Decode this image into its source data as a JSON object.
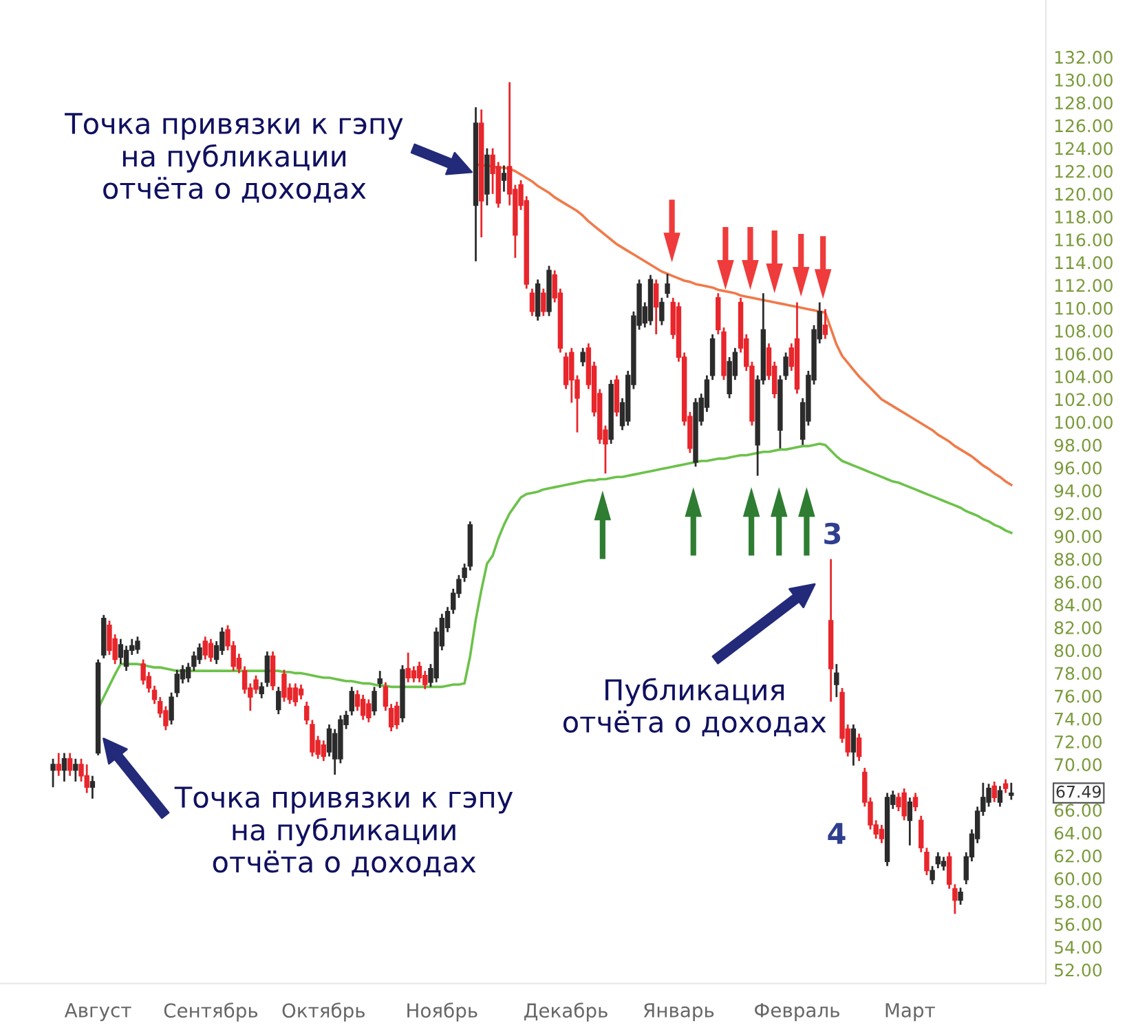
{
  "chart_data": {
    "type": "candlestick",
    "categories": [
      null,
      null,
      null,
      null,
      null,
      null,
      null,
      null,
      "Август",
      null,
      null,
      null,
      null,
      null,
      null,
      null,
      null,
      null,
      null,
      null,
      null,
      null,
      null,
      null,
      null,
      null,
      null,
      null,
      "Сентябрь",
      null,
      null,
      null,
      null,
      null,
      null,
      null,
      null,
      null,
      null,
      null,
      null,
      null,
      null,
      null,
      null,
      null,
      null,
      null,
      "Октябрь",
      null,
      null,
      null,
      null,
      null,
      null,
      null,
      null,
      null,
      null,
      null,
      null,
      null,
      null,
      null,
      null,
      null,
      null,
      null,
      null,
      "Ноябрь",
      null,
      null,
      null,
      null,
      null,
      null,
      null,
      null,
      null,
      null,
      null,
      null,
      null,
      null,
      null,
      null,
      null,
      null,
      null,
      null,
      null,
      "Декабрь",
      null,
      null,
      null,
      null,
      null,
      null,
      null,
      null,
      null,
      null,
      null,
      null,
      null,
      null,
      null,
      null,
      null,
      null,
      null,
      "Январь",
      null,
      null,
      null,
      null,
      null,
      null,
      null,
      null,
      null,
      null,
      null,
      null,
      null,
      null,
      null,
      null,
      null,
      null,
      null,
      null,
      "Февраль",
      null,
      null,
      null,
      null,
      null,
      null,
      null,
      null,
      null,
      null,
      null,
      null,
      null,
      null,
      null,
      null,
      null,
      null,
      null,
      "Март",
      null,
      null,
      null,
      null,
      null,
      null,
      null,
      null,
      null,
      null,
      null,
      null,
      null,
      null,
      null,
      null,
      null,
      null
    ],
    "ohlc": [
      [
        69.5,
        70.5,
        68,
        70
      ],
      [
        70,
        71,
        69,
        69.5
      ],
      [
        69.5,
        71,
        68.5,
        70.5
      ],
      [
        70.5,
        71,
        69,
        69.5
      ],
      [
        69.5,
        70.5,
        68.5,
        70
      ],
      [
        70,
        70.5,
        68.5,
        69
      ],
      [
        69,
        70,
        67.5,
        68
      ],
      [
        68,
        69,
        67,
        68.5
      ],
      [
        71,
        79.2,
        70.8,
        78.9
      ],
      [
        79.6,
        83.1,
        79.3,
        82.8
      ],
      [
        82.2,
        82.6,
        79.6,
        80
      ],
      [
        81,
        81.4,
        78.8,
        79.2
      ],
      [
        79.4,
        81,
        78.8,
        80.5
      ],
      [
        78.6,
        80.4,
        78.2,
        80
      ],
      [
        80,
        81,
        79.6,
        80.4
      ],
      [
        80.1,
        81.2,
        79.7,
        80.8
      ],
      [
        78.8,
        79.2,
        77,
        77.4
      ],
      [
        77.7,
        78.1,
        76.3,
        76.7
      ],
      [
        76.5,
        76.9,
        75.3,
        75.7
      ],
      [
        75.5,
        75.9,
        74.1,
        74.5
      ],
      [
        74.7,
        75.1,
        73,
        73.4
      ],
      [
        73.9,
        76.3,
        73.5,
        75.9
      ],
      [
        76.3,
        78.3,
        75.9,
        77.9
      ],
      [
        77.5,
        78.7,
        77.1,
        78.3
      ],
      [
        77.6,
        78.9,
        77.2,
        78.5
      ],
      [
        78.6,
        79.9,
        78.2,
        79.5
      ],
      [
        79.2,
        80.6,
        78.8,
        80.2
      ],
      [
        80.8,
        81.2,
        79.2,
        79.6
      ],
      [
        80.6,
        81,
        79,
        79.4
      ],
      [
        79.2,
        80.8,
        78.8,
        80.4
      ],
      [
        80,
        82,
        79.6,
        81.6
      ],
      [
        81.8,
        82.2,
        80,
        80.4
      ],
      [
        80.4,
        80.8,
        78.2,
        78.6
      ],
      [
        79.3,
        79.7,
        78,
        78.4
      ],
      [
        78.2,
        78.6,
        76.2,
        76.6
      ],
      [
        76.7,
        77.1,
        74.7,
        75.9
      ],
      [
        77.4,
        77.8,
        76.2,
        76.6
      ],
      [
        76.2,
        77.2,
        75.8,
        76.8
      ],
      [
        77.2,
        79.9,
        76.8,
        79.5
      ],
      [
        79.5,
        79.9,
        76.5,
        76.9
      ],
      [
        74.8,
        76.8,
        74.4,
        76.4
      ],
      [
        77.9,
        78.3,
        75.5,
        75.9
      ],
      [
        76.7,
        77.1,
        75.3,
        75.7
      ],
      [
        76.7,
        77.1,
        75.1,
        75.5
      ],
      [
        76.6,
        77,
        75.7,
        76.1
      ],
      [
        75.1,
        75.5,
        73.5,
        73.9
      ],
      [
        73.5,
        73.9,
        70.7,
        71.1
      ],
      [
        72.1,
        72.5,
        70.5,
        70.9
      ],
      [
        71.7,
        72.1,
        70.3,
        70.7
      ],
      [
        71.1,
        73.5,
        70.7,
        73.1
      ],
      [
        70.5,
        73.1,
        69.1,
        72.7
      ],
      [
        70.5,
        74.3,
        70.1,
        73.9
      ],
      [
        73.5,
        74.7,
        73.1,
        74.3
      ],
      [
        74.7,
        76.8,
        74.3,
        76.4
      ],
      [
        76.1,
        76.5,
        74.7,
        75.1
      ],
      [
        75.7,
        76.1,
        73.9,
        74.3
      ],
      [
        75.3,
        75.7,
        73.7,
        74.1
      ],
      [
        74.7,
        76.8,
        74.3,
        76.4
      ],
      [
        77.1,
        78.2,
        76.7,
        77.5
      ],
      [
        76.8,
        77.2,
        74.7,
        75.1
      ],
      [
        74.9,
        75.3,
        72.9,
        73.3
      ],
      [
        75.1,
        75.5,
        73.1,
        73.5
      ],
      [
        74.1,
        78.7,
        73.7,
        78.3
      ],
      [
        78.4,
        79.8,
        77.2,
        77.6
      ],
      [
        78.2,
        78.6,
        77.2,
        77.6
      ],
      [
        78.6,
        79,
        77.2,
        77.6
      ],
      [
        77.8,
        78.2,
        76.6,
        77
      ],
      [
        77.2,
        78.8,
        76.8,
        78.4
      ],
      [
        77.6,
        82,
        77.2,
        81.6
      ],
      [
        80.4,
        83.2,
        80,
        82.8
      ],
      [
        82,
        83.8,
        81.6,
        83.4
      ],
      [
        83.6,
        85.4,
        83.2,
        85
      ],
      [
        85,
        86.6,
        84.6,
        86.2
      ],
      [
        86.4,
        87.6,
        86,
        87.2
      ],
      [
        87.4,
        91.3,
        87,
        91
      ],
      [
        119,
        127.6,
        114.1,
        126.2
      ],
      [
        126.2,
        127.4,
        116.2,
        119.4
      ],
      [
        120,
        124,
        119,
        123.4
      ],
      [
        123.4,
        124,
        120,
        121.8
      ],
      [
        122.4,
        122.8,
        118.8,
        119.2
      ],
      [
        121.2,
        122.5,
        120.2,
        121.8
      ],
      [
        122.4,
        129.8,
        119,
        120
      ],
      [
        120.4,
        120.8,
        114.4,
        116.4
      ],
      [
        120.8,
        121.2,
        118.6,
        119
      ],
      [
        119.4,
        119.8,
        111.7,
        112.1
      ],
      [
        111.3,
        111.7,
        109.3,
        109.7
      ],
      [
        109.3,
        112.5,
        108.9,
        112.1
      ],
      [
        111.3,
        111.7,
        109.3,
        109.7
      ],
      [
        109.7,
        113.7,
        109.3,
        113.3
      ],
      [
        112.9,
        113.3,
        110.5,
        110.9
      ],
      [
        111.3,
        111.7,
        106.1,
        106.5
      ],
      [
        105.7,
        106.1,
        102.9,
        103.3
      ],
      [
        106.1,
        106.5,
        101.7,
        103.7
      ],
      [
        103.7,
        104.1,
        99.1,
        102.1
      ],
      [
        105.3,
        106.5,
        104.9,
        106.1
      ],
      [
        106.5,
        106.9,
        102.9,
        103.3
      ],
      [
        104.9,
        105.3,
        100.5,
        100.9
      ],
      [
        102.5,
        102.9,
        98.1,
        98.5
      ],
      [
        99.3,
        99.7,
        95.5,
        98.1
      ],
      [
        98.5,
        103.7,
        98.1,
        103.3
      ],
      [
        103.7,
        104.1,
        100.5,
        100.9
      ],
      [
        99.7,
        102.1,
        99.3,
        101.7
      ],
      [
        100.1,
        104.5,
        99.7,
        104.1
      ],
      [
        103.3,
        109.7,
        102.9,
        109.3
      ],
      [
        108.5,
        112.5,
        108.1,
        112.1
      ],
      [
        108.7,
        110.5,
        108.3,
        110.1
      ],
      [
        108.9,
        112.9,
        108.5,
        112.5
      ],
      [
        112.1,
        112.5,
        107.7,
        110.1
      ],
      [
        108.9,
        110.9,
        108.5,
        110.5
      ],
      [
        111.3,
        113,
        110.9,
        112.1
      ],
      [
        110.5,
        110.9,
        107.3,
        107.7
      ],
      [
        110.1,
        110.5,
        105.3,
        105.7
      ],
      [
        105.7,
        106.1,
        99.7,
        100.1
      ],
      [
        100.5,
        100.9,
        97.3,
        97.7
      ],
      [
        96.5,
        102.1,
        96.1,
        101.7
      ],
      [
        100.1,
        102.5,
        99.7,
        102.1
      ],
      [
        101.3,
        104.1,
        100.9,
        103.7
      ],
      [
        104.1,
        107.7,
        103.7,
        107.3
      ],
      [
        110.9,
        111.3,
        107.7,
        108.1
      ],
      [
        107.9,
        108.3,
        103.7,
        104.1
      ],
      [
        102.5,
        105.7,
        102.1,
        105.3
      ],
      [
        104.1,
        106.5,
        103.7,
        106.1
      ],
      [
        110.5,
        110.9,
        106.1,
        106.5
      ],
      [
        107.3,
        107.7,
        104.5,
        104.9
      ],
      [
        104.9,
        105.3,
        99.7,
        100.1
      ],
      [
        98,
        104.1,
        95.3,
        103.7
      ],
      [
        103.7,
        111.3,
        103.3,
        108.1
      ],
      [
        106.5,
        106.9,
        103.7,
        104.1
      ],
      [
        104.9,
        105.3,
        102.1,
        102.5
      ],
      [
        99.3,
        104.1,
        97.7,
        103.7
      ],
      [
        104.1,
        106.1,
        103.7,
        105.7
      ],
      [
        106.5,
        106.9,
        104.5,
        104.9
      ],
      [
        107.3,
        110.5,
        102.5,
        102.9
      ],
      [
        98.5,
        102.1,
        98,
        101.7
      ],
      [
        100.1,
        104.5,
        99.7,
        104.1
      ],
      [
        103.7,
        108.5,
        103.3,
        108.1
      ],
      [
        107.3,
        110.5,
        106.9,
        109.7
      ],
      [
        108.5,
        109.9,
        107.3,
        107.7
      ],
      [
        82.6,
        88,
        75.5,
        78.4
      ],
      [
        77,
        78.8,
        75.9,
        78
      ],
      [
        76.3,
        76.7,
        71.9,
        72.3
      ],
      [
        73.1,
        73.5,
        70.7,
        71.1
      ],
      [
        71.1,
        73.5,
        69.9,
        73.1
      ],
      [
        72.3,
        72.7,
        70.3,
        70.7
      ],
      [
        69.3,
        69.7,
        66.3,
        66.7
      ],
      [
        66.7,
        67.1,
        64.3,
        64.7
      ],
      [
        64.7,
        65.1,
        63.5,
        63.9
      ],
      [
        64.3,
        64.7,
        63.1,
        63.5
      ],
      [
        61.5,
        67.5,
        61.1,
        67.1
      ],
      [
        66.5,
        67.7,
        66.1,
        67.3
      ],
      [
        67.1,
        67.5,
        65.9,
        66.3
      ],
      [
        67.5,
        67.9,
        65.1,
        65.5
      ],
      [
        65.1,
        67.1,
        62.9,
        66.7
      ],
      [
        67.1,
        67.5,
        65.9,
        66.3
      ],
      [
        65.1,
        65.5,
        62.3,
        62.7
      ],
      [
        62.3,
        62.7,
        60.3,
        60.7
      ],
      [
        59.9,
        61.1,
        59.5,
        60.7
      ],
      [
        61.3,
        62.3,
        60.9,
        61.9
      ],
      [
        61.1,
        61.9,
        60.7,
        61.5
      ],
      [
        61.9,
        62.3,
        59.1,
        59.5
      ],
      [
        59.1,
        59.5,
        56.9,
        58.1
      ],
      [
        58.1,
        59.2,
        57.7,
        58.8
      ],
      [
        59.9,
        62.3,
        59.5,
        61.9
      ],
      [
        61.9,
        64.3,
        61.5,
        63.9
      ],
      [
        63.5,
        66.3,
        63.1,
        65.9
      ],
      [
        65.9,
        68.4,
        65.5,
        67.1
      ],
      [
        66.7,
        68.3,
        66.3,
        67.9
      ],
      [
        68.1,
        68.5,
        66.7,
        67.1
      ],
      [
        66.7,
        68.1,
        66.3,
        67.7
      ],
      [
        68.3,
        68.7,
        67.5,
        67.9
      ],
      [
        67.3,
        68.4,
        66.9,
        67.49
      ]
    ],
    "series": [
      {
        "type": "line",
        "color": "#6cc24a",
        "values": [
          null,
          null,
          null,
          null,
          null,
          null,
          null,
          null,
          74.9,
          75.9,
          76.9,
          77.9,
          78.8,
          78.8,
          78.8,
          78.8,
          78.7,
          78.6,
          78.5,
          78.5,
          78.4,
          78.3,
          78.2,
          78.2,
          78.2,
          78.2,
          78.2,
          78.2,
          78.2,
          78.2,
          78.2,
          78.2,
          78.2,
          78.2,
          78.2,
          78.2,
          78.2,
          78.2,
          78.2,
          78.2,
          78.2,
          78.1,
          78.1,
          78.0,
          78.0,
          77.9,
          77.8,
          77.7,
          77.6,
          77.6,
          77.5,
          77.4,
          77.3,
          77.3,
          77.2,
          77.1,
          77.1,
          77.0,
          76.9,
          76.9,
          76.8,
          76.8,
          76.8,
          76.8,
          76.8,
          76.8,
          76.8,
          76.8,
          76.8,
          76.8,
          76.9,
          77.0,
          77.0,
          77.1,
          79.5,
          82.7,
          85.3,
          87.6,
          88.3,
          89.8,
          91.0,
          92.0,
          92.7,
          93.4,
          93.7,
          93.8,
          93.9,
          94.1,
          94.2,
          94.3,
          94.4,
          94.5,
          94.6,
          94.7,
          94.8,
          94.9,
          94.9,
          95.0,
          95.0,
          95.1,
          95.2,
          95.2,
          95.3,
          95.4,
          95.5,
          95.6,
          95.7,
          95.8,
          95.9,
          96.0,
          96.1,
          96.2,
          96.3,
          96.4,
          96.5,
          96.6,
          96.6,
          96.7,
          96.8,
          96.8,
          96.9,
          97.0,
          97.1,
          97.1,
          97.2,
          97.3,
          97.4,
          97.4,
          97.5,
          97.6,
          97.6,
          97.7,
          97.8,
          97.9,
          97.9,
          98.0,
          98.1,
          98.0,
          97.5,
          97.0,
          96.6,
          96.4,
          96.2,
          96.0,
          95.8,
          95.6,
          95.4,
          95.2,
          95.0,
          94.8,
          94.7,
          94.5,
          94.3,
          94.1,
          93.9,
          93.7,
          93.5,
          93.3,
          93.1,
          92.9,
          92.7,
          92.5,
          92.2,
          92.0,
          91.8,
          91.5,
          91.3,
          91.0,
          90.8,
          90.5,
          90.3
        ]
      },
      {
        "type": "line",
        "color": "#f07a4a",
        "values": [
          null,
          null,
          null,
          null,
          null,
          null,
          null,
          null,
          null,
          null,
          null,
          null,
          null,
          null,
          null,
          null,
          null,
          null,
          null,
          null,
          null,
          null,
          null,
          null,
          null,
          null,
          null,
          null,
          null,
          null,
          null,
          null,
          null,
          null,
          null,
          null,
          null,
          null,
          null,
          null,
          null,
          null,
          null,
          null,
          null,
          null,
          null,
          null,
          null,
          null,
          null,
          null,
          null,
          null,
          null,
          null,
          null,
          null,
          null,
          null,
          null,
          null,
          null,
          null,
          null,
          null,
          null,
          null,
          null,
          null,
          null,
          null,
          null,
          null,
          null,
          122.6,
          122.5,
          122.5,
          122.4,
          122.3,
          122.3,
          122.2,
          122.0,
          121.7,
          121.4,
          121.1,
          120.7,
          120.4,
          120.1,
          119.7,
          119.4,
          119.1,
          118.8,
          118.5,
          118.1,
          117.6,
          117.2,
          116.8,
          116.4,
          116.0,
          115.6,
          115.3,
          115.0,
          114.7,
          114.4,
          114.1,
          113.8,
          113.5,
          113.2,
          113.0,
          112.8,
          112.6,
          112.4,
          112.3,
          112.1,
          112.0,
          111.9,
          111.8,
          111.6,
          111.5,
          111.4,
          111.3,
          111.1,
          111.0,
          110.9,
          110.8,
          110.7,
          110.6,
          110.5,
          110.4,
          110.3,
          110.2,
          110.1,
          110.0,
          109.9,
          109.8,
          109.7,
          109.6,
          108.2,
          106.8,
          105.8,
          105.2,
          104.6,
          104.0,
          103.5,
          103.0,
          102.5,
          102.0,
          101.7,
          101.4,
          101.1,
          100.8,
          100.5,
          100.2,
          99.9,
          99.6,
          99.3,
          98.9,
          98.6,
          98.3,
          97.9,
          97.6,
          97.3,
          97.0,
          96.6,
          96.2,
          95.9,
          95.5,
          95.2,
          94.8,
          94.5
        ]
      }
    ],
    "ylim": [
      50.8,
      137
    ],
    "yticks": [
      {
        "value": 52,
        "label": "52.00"
      },
      {
        "value": 54,
        "label": "54.00"
      },
      {
        "value": 56,
        "label": "56.00"
      },
      {
        "value": 58,
        "label": "58.00"
      },
      {
        "value": 60,
        "label": "60.00"
      },
      {
        "value": 62,
        "label": "62.00"
      },
      {
        "value": 64,
        "label": "64.00"
      },
      {
        "value": 66,
        "label": "66.00"
      },
      {
        "value": 70,
        "label": "70.00"
      },
      {
        "value": 72,
        "label": "72.00"
      },
      {
        "value": 74,
        "label": "74.00"
      },
      {
        "value": 76,
        "label": "76.00"
      },
      {
        "value": 78,
        "label": "78.00"
      },
      {
        "value": 80,
        "label": "80.00"
      },
      {
        "value": 82,
        "label": "82.00"
      },
      {
        "value": 84,
        "label": "84.00"
      },
      {
        "value": 86,
        "label": "86.00"
      },
      {
        "value": 88,
        "label": "88.00"
      },
      {
        "value": 90,
        "label": "90.00"
      },
      {
        "value": 92,
        "label": "92.00"
      },
      {
        "value": 94,
        "label": "94.00"
      },
      {
        "value": 96,
        "label": "96.00"
      },
      {
        "value": 98,
        "label": "98.00"
      },
      {
        "value": 100,
        "label": "100.00"
      },
      {
        "value": 102,
        "label": "102.00"
      },
      {
        "value": 104,
        "label": "104.00"
      },
      {
        "value": 106,
        "label": "106.00"
      },
      {
        "value": 108,
        "label": "108.00"
      },
      {
        "value": 110,
        "label": "110.00"
      },
      {
        "value": 112,
        "label": "112.00"
      },
      {
        "value": 114,
        "label": "114.00"
      },
      {
        "value": 116,
        "label": "116.00"
      },
      {
        "value": 118,
        "label": "118.00"
      },
      {
        "value": 120,
        "label": "120.00"
      },
      {
        "value": 122,
        "label": "122.00"
      },
      {
        "value": 124,
        "label": "124.00"
      },
      {
        "value": 126,
        "label": "126.00"
      },
      {
        "value": 128,
        "label": "128.00"
      },
      {
        "value": 130,
        "label": "130.00"
      },
      {
        "value": 132,
        "label": "132.00"
      }
    ],
    "annotations": [
      "Точка привязки к гэпу\nна публикации\nотчёта о доходах",
      "Точка привязки к гэпу\nна публикации\nотчёта о доходах",
      "Публикация\nотчёта о доходах",
      "3",
      "4",
      "67.49"
    ],
    "grid": false,
    "legend": false
  }
}
